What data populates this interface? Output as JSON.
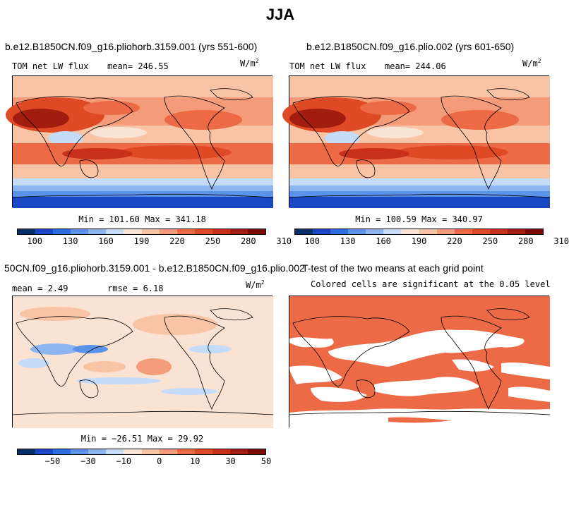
{
  "figure_title": "JJA",
  "panels": {
    "p1": {
      "title": "b.e12.B1850CN.f09_g16.pliohorb.3159.001 (yrs 551-600)",
      "left_label": "TOM net LW flux",
      "mean_label": "mean= 246.55",
      "units": "W/m",
      "units_exp": "2",
      "minmax": "Min = 101.60 Max = 341.18",
      "ticks": [
        "100",
        "130",
        "160",
        "190",
        "220",
        "250",
        "280",
        "310"
      ]
    },
    "p2": {
      "title": "b.e12.B1850CN.f09_g16.plio.002 (yrs 601-650)",
      "left_label": "TOM net LW flux",
      "mean_label": "mean= 244.06",
      "units": "W/m",
      "units_exp": "2",
      "minmax": "Min = 100.59 Max = 340.97",
      "ticks": [
        "100",
        "130",
        "160",
        "190",
        "220",
        "250",
        "280",
        "310"
      ]
    },
    "p3": {
      "title": "50CN.f09_g16.pliohorb.3159.001 - b.e12.B1850CN.f09_g16.plio.002",
      "left_label": "mean =   2.49",
      "mean_label": "rmse =   6.18",
      "units": "W/m",
      "units_exp": "2",
      "minmax": "Min = −26.51 Max =  29.92",
      "ticks": [
        "−50",
        "−30",
        "−10",
        "0",
        "10",
        "30",
        "50"
      ]
    },
    "p4": {
      "title": "T-test of the two means at each grid point",
      "subtitle": "Colored cells are significant at the 0.05 level"
    }
  },
  "colors": {
    "abs_scale": [
      "#08306b",
      "#1a48c4",
      "#2f6ede",
      "#5b93ea",
      "#8db5f2",
      "#c4dcf8",
      "#fbe3d4",
      "#f9c3a6",
      "#f49b79",
      "#ec6a45",
      "#de4a26",
      "#c7311a",
      "#a21d10",
      "#7a0b06"
    ],
    "diff_scale": [
      "#08306b",
      "#1a48c4",
      "#2f6ede",
      "#5b93ea",
      "#8db5f2",
      "#c4dcf8",
      "#fbe3d4",
      "#f9c3a6",
      "#f49b79",
      "#ec6a45",
      "#de4a26",
      "#c7311a",
      "#a21d10",
      "#7a0b06"
    ],
    "significant": "#ec6a45",
    "coast": "#000000"
  }
}
